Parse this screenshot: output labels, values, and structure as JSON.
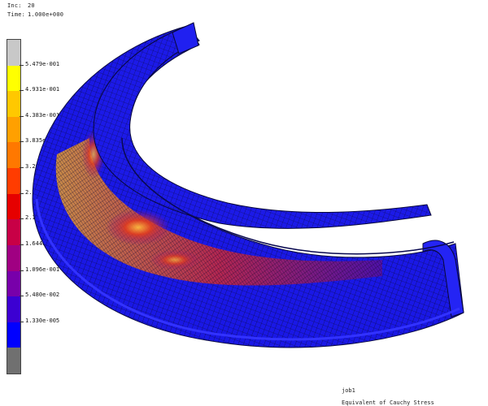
{
  "header": {
    "inc_label": "Inc:",
    "inc_value": "20",
    "time_label": "Time:",
    "time_value": "1.000e+000"
  },
  "legend": {
    "colors": [
      "#c8c8c8",
      "#ffff00",
      "#ffc800",
      "#ffa000",
      "#ff7800",
      "#ff3c00",
      "#e60000",
      "#c80046",
      "#a00082",
      "#7800aa",
      "#3c00d2",
      "#0000ff",
      "#707070"
    ],
    "labels": [
      "5.479e-001",
      "4.931e-001",
      "4.383e-001",
      "3.835e-001",
      "3.287e-001",
      "2.740e-001",
      "2.192e-001",
      "1.644e-001",
      "1.096e-001",
      "5.480e-002",
      "1.330e-005"
    ]
  },
  "footer": {
    "job": "job1",
    "caption": "Equivalent of Cauchy Stress"
  },
  "colors": {
    "background": "#ffffff",
    "mesh_base": "#1a14e0",
    "mesh_lines": "#0a0a3a",
    "hot": "#e0362a"
  }
}
